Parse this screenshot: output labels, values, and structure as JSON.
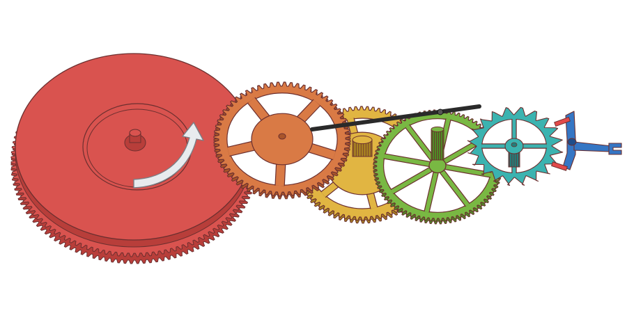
{
  "diagram": {
    "subject": "gear-train-with-escapement",
    "background": "#ffffff",
    "outline": "#6b2f2f",
    "barrel": {
      "color": "#d9534f",
      "dark": "#b83e3a",
      "arrow": "clockwise-rotation-arrow",
      "arrow_color": "#e8ebee"
    },
    "center_wheel": {
      "color": "#d97a45",
      "dark": "#a9552a",
      "teeth": 64
    },
    "third_wheel": {
      "color": "#e1b542",
      "dark": "#a98421",
      "teeth": 70
    },
    "fourth_wheel": {
      "color": "#79b843",
      "dark": "#4f8a26",
      "teeth": 80
    },
    "escape_wheel": {
      "color": "#3bb3b0",
      "dark": "#227f7c",
      "teeth": 20
    },
    "pallet_fork": {
      "color": "#3576c4",
      "dark": "#1f4d8a",
      "jewel_color": "#e24a4a"
    },
    "second_hand": {
      "color": "#2a2a2a"
    }
  }
}
